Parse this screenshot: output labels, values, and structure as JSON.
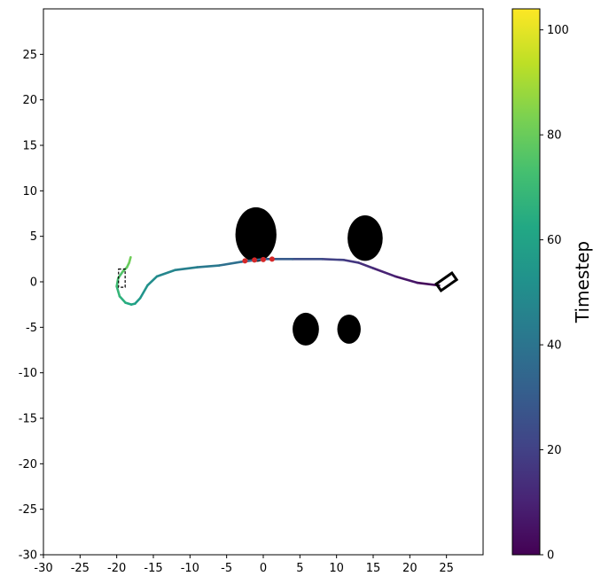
{
  "chart_data": {
    "type": "scatter",
    "title": "",
    "xlabel": "",
    "ylabel": "",
    "xlim": [
      -30,
      30
    ],
    "ylim": [
      -30,
      30
    ],
    "x_ticks": [
      -30,
      -25,
      -20,
      -15,
      -10,
      -5,
      0,
      5,
      10,
      15,
      20,
      25
    ],
    "y_ticks": [
      -30,
      -25,
      -20,
      -15,
      -10,
      -5,
      0,
      5,
      10,
      15,
      20,
      25
    ],
    "grid": false,
    "colorbar": {
      "label": "Timestep",
      "colormap": "viridis",
      "range": [
        0,
        104
      ],
      "ticks": [
        0,
        20,
        40,
        60,
        80,
        100
      ]
    },
    "obstacles": [
      {
        "cx": -1.0,
        "cy": 5.2,
        "rx": 2.8,
        "ry": 3.0
      },
      {
        "cx": 13.9,
        "cy": 4.8,
        "rx": 2.4,
        "ry": 2.5
      },
      {
        "cx": 5.8,
        "cy": -5.2,
        "rx": 1.8,
        "ry": 1.8
      },
      {
        "cx": 11.7,
        "cy": -5.2,
        "rx": 1.6,
        "ry": 1.6
      }
    ],
    "trajectory": {
      "x": [
        24.0,
        21.0,
        18.0,
        15.0,
        13.0,
        11.0,
        8.0,
        4.0,
        0.0,
        -3.0,
        -6.0,
        -9.0,
        -12.0,
        -14.5,
        -15.8,
        -16.8,
        -17.5,
        -18.0,
        -18.8,
        -19.6,
        -20.0,
        -19.8,
        -19.2,
        -18.6,
        -18.3,
        -18.1
      ],
      "y": [
        -0.4,
        -0.1,
        0.6,
        1.5,
        2.1,
        2.4,
        2.5,
        2.5,
        2.5,
        2.2,
        1.8,
        1.6,
        1.3,
        0.6,
        -0.4,
        -1.8,
        -2.4,
        -2.5,
        -2.3,
        -1.6,
        -0.5,
        0.4,
        1.1,
        1.6,
        2.1,
        2.7
      ],
      "t": [
        0,
        4,
        8,
        12,
        15,
        18,
        22,
        27,
        32,
        36,
        40,
        43,
        46,
        49,
        52,
        55,
        58,
        61,
        64,
        67,
        70,
        73,
        76,
        78,
        80,
        82
      ]
    },
    "red_points": {
      "x": [
        -2.5,
        -1.2,
        0.0,
        1.2
      ],
      "y": [
        2.3,
        2.4,
        2.45,
        2.5
      ]
    },
    "start_box": {
      "cx": 25.0,
      "cy": 0.0,
      "w": 2.6,
      "h": 0.9,
      "angle_deg": -35
    },
    "goal_box": {
      "cx": -19.3,
      "cy": 0.4,
      "w": 0.9,
      "h": 2.0
    }
  }
}
